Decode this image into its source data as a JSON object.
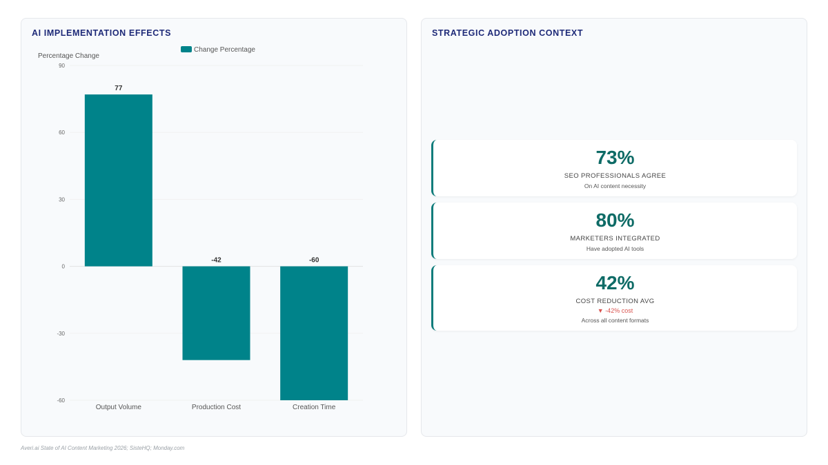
{
  "left_panel": {
    "title": "AI IMPLEMENTATION EFFECTS"
  },
  "right_panel": {
    "title": "STRATEGIC ADOPTION CONTEXT"
  },
  "chart_data": {
    "type": "bar",
    "categories": [
      "Output Volume",
      "Production Cost",
      "Creation Time"
    ],
    "series": [
      {
        "name": "Change Percentage",
        "values": [
          77,
          -42,
          -60
        ],
        "color": "#00838a"
      }
    ],
    "ylabel": "Percentage Change",
    "ylim": [
      -60,
      90
    ],
    "yticks": [
      90,
      60,
      30,
      0,
      -30,
      -60
    ],
    "legend": "top-center",
    "grid": true
  },
  "stats": [
    {
      "value": "73%",
      "label": "SEO PROFESSIONALS AGREE",
      "note": "On AI content necessity"
    },
    {
      "value": "80%",
      "label": "MARKETERS INTEGRATED",
      "note": "Have adopted AI tools"
    },
    {
      "value": "42%",
      "label": "COST REDUCTION AVG",
      "delta": "▼ -42% cost",
      "note": "Across all content formats"
    }
  ],
  "source": "Averi.ai State of AI Content Marketing 2026; SisteHQ; Monday.com",
  "colors": {
    "accent": "#0e7c7b",
    "title": "#1e2a78",
    "negative": "#d9534f"
  }
}
